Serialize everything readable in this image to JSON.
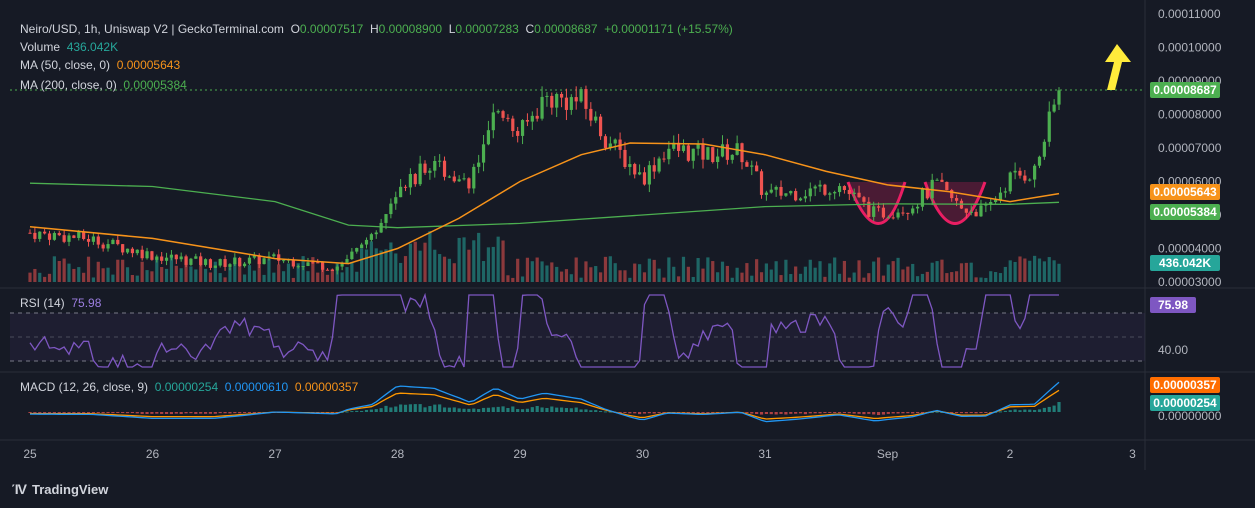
{
  "header": {
    "symbol": "Neiro/USD, 1h, Uniswap V2 | GeckoTerminal.com",
    "o_label": "O",
    "o": "0.00007517",
    "h_label": "H",
    "h": "0.00008900",
    "l_label": "L",
    "l": "0.00007283",
    "c_label": "C",
    "c": "0.00008687",
    "change": "+0.00001171 (+15.57%)"
  },
  "legend": {
    "volume_label": "Volume",
    "volume_value": "436.042K",
    "ma50_label": "MA (50, close, 0)",
    "ma50_value": "0.00005643",
    "ma200_label": "MA (200, close, 0)",
    "ma200_value": "0.00005384",
    "rsi_label": "RSI (14)",
    "rsi_value": "75.98",
    "macd_label": "MACD (12, 26, close, 9)",
    "macd_hist": "0.00000254",
    "macd_line": "0.00000610",
    "macd_signal": "0.00000357"
  },
  "badges": {
    "price": "0.00008687",
    "ma50": "0.00005643",
    "ma200": "0.00005384",
    "volume": "436.042K",
    "rsi": "75.98",
    "macd_signal": "0.00000357",
    "macd_hist": "0.00000254"
  },
  "colors": {
    "background": "#161a25",
    "up": "#4caf50",
    "down": "#ef5350",
    "ma50": "#f7931a",
    "ma200": "#4caf50",
    "rsi": "#7e57c2",
    "macd": "#2196f3",
    "signal": "#ff9800",
    "pattern": "#e91e63",
    "arrow": "#ffeb3b"
  },
  "brand": {
    "name": "TradingView",
    "icon": "tradingview-logo"
  },
  "chart_data": {
    "type": "candlestick",
    "title": "Neiro/USD, 1h, Uniswap V2 | GeckoTerminal.com",
    "y_axis_ticks": [
      "0.00011000",
      "0.00010000",
      "0.00009000",
      "0.00008000",
      "0.00007000",
      "0.00006000",
      "0.00005000",
      "0.00004000",
      "0.00003000"
    ],
    "ylim": [
      3e-05,
      0.00011
    ],
    "x_axis_ticks": [
      "25",
      "26",
      "27",
      "28",
      "29",
      "30",
      "31",
      "Sep",
      "2",
      "3"
    ],
    "rsi_ticks": [
      "40.00"
    ],
    "macd_ticks": [
      "0.00000000"
    ],
    "close_series": [
      {
        "day": 25.0,
        "close": 4.47e-05
      },
      {
        "day": 25.5,
        "close": 4.28e-05
      },
      {
        "day": 26.0,
        "close": 3.8e-05
      },
      {
        "day": 26.5,
        "close": 3.54e-05
      },
      {
        "day": 27.0,
        "close": 3.7e-05
      },
      {
        "day": 27.5,
        "close": 3.45e-05
      },
      {
        "day": 27.8,
        "close": 4.3e-05
      },
      {
        "day": 28.0,
        "close": 5.9e-05
      },
      {
        "day": 28.3,
        "close": 6.5e-05
      },
      {
        "day": 28.6,
        "close": 6e-05
      },
      {
        "day": 28.8,
        "close": 8e-05
      },
      {
        "day": 29.0,
        "close": 7.4e-05
      },
      {
        "day": 29.2,
        "close": 8.5e-05
      },
      {
        "day": 29.5,
        "close": 8.4e-05
      },
      {
        "day": 29.7,
        "close": 7.3e-05
      },
      {
        "day": 30.0,
        "close": 6.1e-05
      },
      {
        "day": 30.2,
        "close": 7e-05
      },
      {
        "day": 30.5,
        "close": 6.8e-05
      },
      {
        "day": 30.8,
        "close": 6.9e-05
      },
      {
        "day": 31.0,
        "close": 5.6e-05
      },
      {
        "day": 31.3,
        "close": 5.7e-05
      },
      {
        "day": 31.6,
        "close": 5.9e-05
      },
      {
        "day": 31.9,
        "close": 5e-05
      },
      {
        "day": 32.2,
        "close": 5.3e-05
      },
      {
        "day": 32.4,
        "close": 5.9e-05
      },
      {
        "day": 32.6,
        "close": 5.2e-05
      },
      {
        "day": 32.8,
        "close": 5.1e-05
      },
      {
        "day": 33.0,
        "close": 6.1e-05
      },
      {
        "day": 33.2,
        "close": 6.3e-05
      },
      {
        "day": 33.4,
        "close": 8.7e-05
      }
    ],
    "ma50_series": [
      {
        "day": 25.0,
        "value": 4.65e-05
      },
      {
        "day": 26.0,
        "value": 4.3e-05
      },
      {
        "day": 27.0,
        "value": 3.7e-05
      },
      {
        "day": 27.6,
        "value": 3.55e-05
      },
      {
        "day": 28.0,
        "value": 4e-05
      },
      {
        "day": 28.5,
        "value": 4.9e-05
      },
      {
        "day": 29.0,
        "value": 6e-05
      },
      {
        "day": 29.5,
        "value": 6.8e-05
      },
      {
        "day": 29.9,
        "value": 7.15e-05
      },
      {
        "day": 30.5,
        "value": 7.12e-05
      },
      {
        "day": 31.0,
        "value": 6.8e-05
      },
      {
        "day": 31.5,
        "value": 6.3e-05
      },
      {
        "day": 32.0,
        "value": 5.9e-05
      },
      {
        "day": 32.5,
        "value": 5.7e-05
      },
      {
        "day": 33.0,
        "value": 5.4e-05
      },
      {
        "day": 33.4,
        "value": 5.64e-05
      }
    ],
    "ma200_series": [
      {
        "day": 25.0,
        "value": 5.95e-05
      },
      {
        "day": 26.0,
        "value": 5.85e-05
      },
      {
        "day": 27.0,
        "value": 5.4e-05
      },
      {
        "day": 27.6,
        "value": 4.7e-05
      },
      {
        "day": 28.0,
        "value": 4.62e-05
      },
      {
        "day": 29.0,
        "value": 4.75e-05
      },
      {
        "day": 30.0,
        "value": 5e-05
      },
      {
        "day": 31.0,
        "value": 5.25e-05
      },
      {
        "day": 32.0,
        "value": 5.33e-05
      },
      {
        "day": 33.0,
        "value": 5.32e-05
      },
      {
        "day": 33.4,
        "value": 5.38e-05
      }
    ]
  }
}
